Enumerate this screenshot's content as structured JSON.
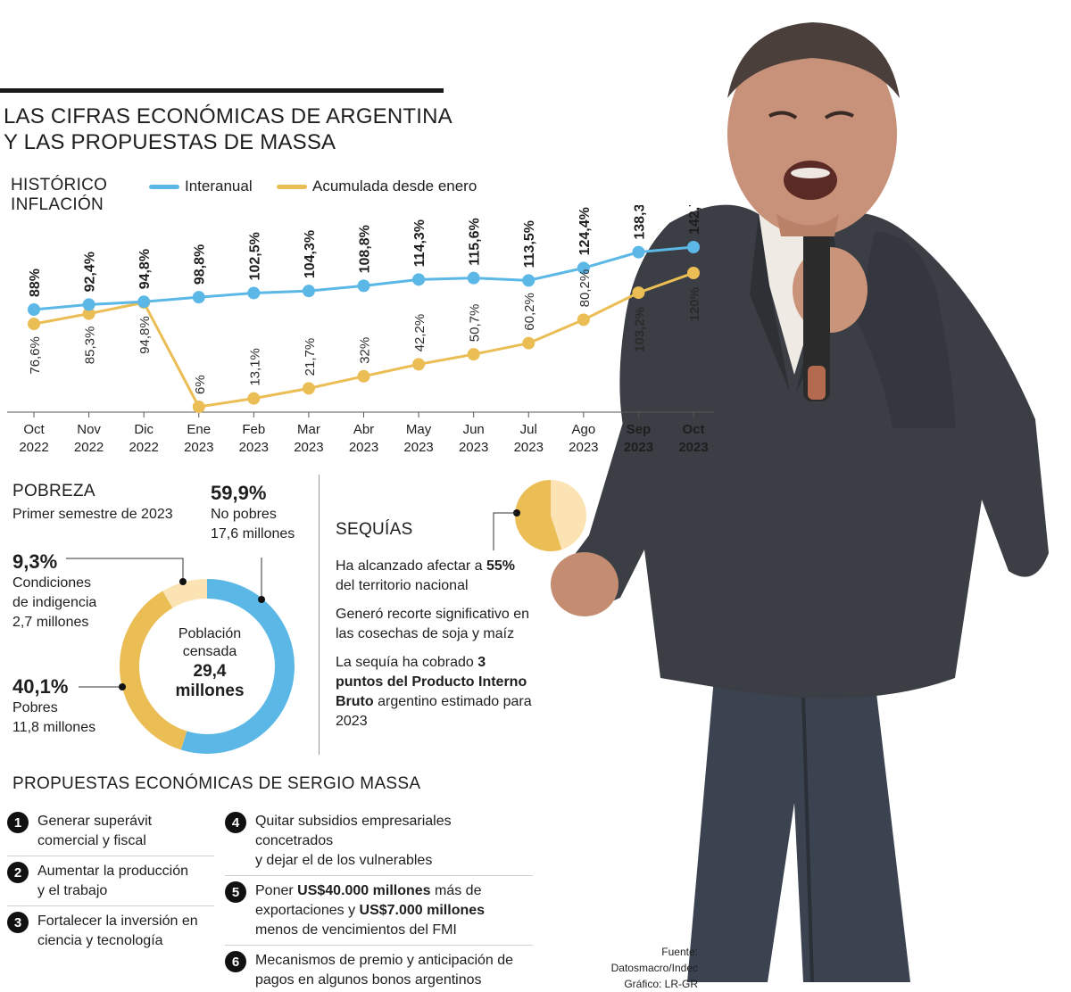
{
  "title": {
    "line1": "LAS CIFRAS ECONÓMICAS DE ARGENTINA",
    "line2": "Y LAS PROPUESTAS DE MASSA"
  },
  "inflation": {
    "heading_line1": "HISTÓRICO",
    "heading_line2": "INFLACIÓN",
    "colors": {
      "interanual": "#5bb8e6",
      "acumulada": "#ebbd55"
    }
  },
  "chart_data": {
    "type": "line",
    "categories": [
      [
        "Oct",
        "2022"
      ],
      [
        "Nov",
        "2022"
      ],
      [
        "Dic",
        "2022"
      ],
      [
        "Ene",
        "2023"
      ],
      [
        "Feb",
        "2023"
      ],
      [
        "Mar",
        "2023"
      ],
      [
        "Abr",
        "2023"
      ],
      [
        "May",
        "2023"
      ],
      [
        "Jun",
        "2023"
      ],
      [
        "Jul",
        "2023"
      ],
      [
        "Ago",
        "2023"
      ],
      [
        "Sep",
        "2023"
      ],
      [
        "Oct",
        "2023"
      ]
    ],
    "series": [
      {
        "name": "Interanual",
        "values": [
          88,
          92.4,
          94.8,
          98.8,
          102.5,
          104.3,
          108.8,
          114.3,
          115.6,
          113.5,
          124.4,
          138.3,
          142.7
        ],
        "labels": [
          "88%",
          "92,4%",
          "94,8%",
          "98,8%",
          "102,5%",
          "104,3%",
          "108,8%",
          "114,3%",
          "115,6%",
          "113,5%",
          "124,4%",
          "138,3%",
          "142,7%"
        ]
      },
      {
        "name": "Acumulada desde enero",
        "values": [
          76.6,
          85.3,
          94.8,
          6,
          13.1,
          21.7,
          32,
          42.2,
          50.7,
          60.2,
          80.2,
          103.2,
          120
        ],
        "labels": [
          "76,6%",
          "85,3%",
          "94,8%",
          "6%",
          "13,1%",
          "21,7%",
          "32%",
          "42,2%",
          "50,7%",
          "60,2%",
          "80,2%",
          "103,2%",
          "120%"
        ]
      }
    ],
    "bold_categories": [
      11,
      12
    ],
    "legend_position": "top",
    "grid": false
  },
  "pobreza": {
    "title": "POBREZA",
    "subtitle": "Primer semestre de 2023",
    "center_line1": "Población",
    "center_line2": "censada",
    "center_value1": "29,4",
    "center_value2": "millones",
    "segments": [
      {
        "pct": "59,9%",
        "line1": "No pobres",
        "line2": "17,6 millones",
        "value": 59.9,
        "color": "#5bb8e6"
      },
      {
        "pct": "40,1%",
        "line1": "Pobres",
        "line2": "11,8 millones",
        "value": 40.1,
        "color": "#ebbd55"
      },
      {
        "pct": "9,3%",
        "line1": "Condiciones",
        "line2": "de indigencia",
        "line3": "2,7 millones",
        "value": 9.3,
        "color": "#fbe3b4"
      }
    ]
  },
  "sequias": {
    "title": "SEQUÍAS",
    "pie_value": 55,
    "colors": {
      "main": "#ebbd55",
      "rest": "#fbe3b4"
    },
    "p1_pre": "Ha alcanzado afectar a ",
    "p1_bold": "55%",
    "p1_post": "del territorio nacional",
    "p2": "Generó recorte significativo en las cosechas de soja y maíz",
    "p3_pre": "La sequía ha cobrado ",
    "p3_bold": "3 puntos del Producto Interno Bruto",
    "p3_post": " argentino estimado para 2023"
  },
  "propuestas": {
    "title": "PROPUESTAS ECONÓMICAS DE SERGIO MASSA",
    "items": [
      {
        "n": "1",
        "l1": "Generar superávit",
        "l2": "comercial y fiscal"
      },
      {
        "n": "2",
        "l1": "Aumentar la producción",
        "l2": "y el trabajo"
      },
      {
        "n": "3",
        "l1": "Fortalecer la inversión en",
        "l2": "ciencia y tecnología"
      },
      {
        "n": "4",
        "l1": "Quitar subsidios empresariales concetrados",
        "l2": "y dejar el de los vulnerables"
      },
      {
        "n": "5",
        "l1a": "Poner ",
        "l1b": "US$40.000 millones",
        "l1c": " más de",
        "l2a": "exportaciones y ",
        "l2b": "US$7.000 millones",
        "l3": "menos de vencimientos del FMI"
      },
      {
        "n": "6",
        "l1": "Mecanismos de premio y anticipación de",
        "l2": "pagos en algunos bonos argentinos"
      }
    ]
  },
  "footer": {
    "source": "Fuente: Datosmacro/Indec",
    "credit": "Gráfico: LR-GR"
  }
}
